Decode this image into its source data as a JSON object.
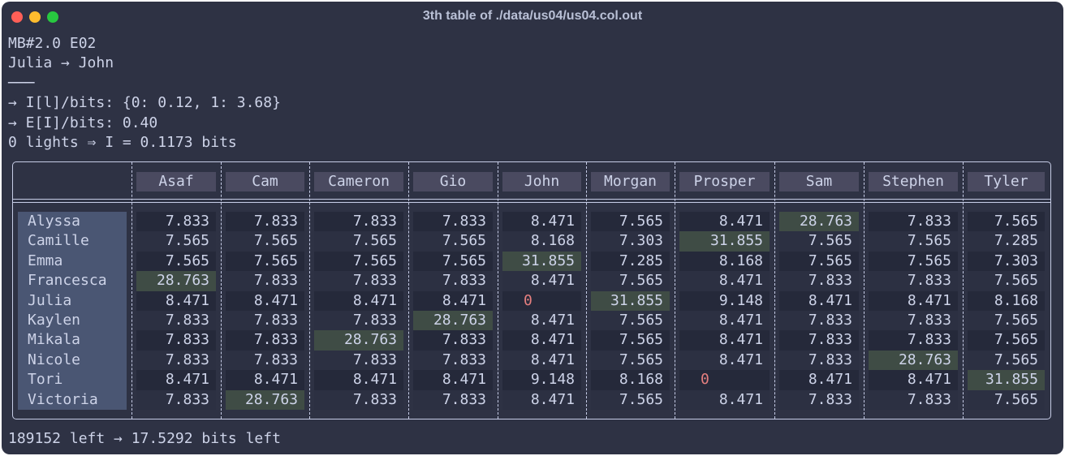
{
  "window": {
    "title": "3th table of ./data/us04/us04.col.out"
  },
  "header_lines": [
    "MB#2.0 E02",
    "Julia → John",
    "───",
    "→ I[l]/bits: {0: 0.12, 1: 3.68}",
    "→ E[I]/bits: 0.40",
    "0 lights ⇒ I = 0.1173 bits"
  ],
  "table": {
    "columns": [
      "Asaf",
      "Cam",
      "Cameron",
      "Gio",
      "John",
      "Morgan",
      "Prosper",
      "Sam",
      "Stephen",
      "Tyler"
    ],
    "rows": [
      {
        "name": "Alyssa",
        "values": [
          "7.833",
          "7.833",
          "7.833",
          "7.833",
          "8.471",
          "7.565",
          "8.471",
          "28.763",
          "7.833",
          "7.565"
        ]
      },
      {
        "name": "Camille",
        "values": [
          "7.565",
          "7.565",
          "7.565",
          "7.565",
          "8.168",
          "7.303",
          "31.855",
          "7.565",
          "7.565",
          "7.285"
        ]
      },
      {
        "name": "Emma",
        "values": [
          "7.565",
          "7.565",
          "7.565",
          "7.565",
          "31.855",
          "7.285",
          "8.168",
          "7.565",
          "7.565",
          "7.303"
        ]
      },
      {
        "name": "Francesca",
        "values": [
          "28.763",
          "7.833",
          "7.833",
          "7.833",
          "8.471",
          "7.565",
          "8.471",
          "7.833",
          "7.833",
          "7.565"
        ]
      },
      {
        "name": "Julia",
        "values": [
          "8.471",
          "8.471",
          "8.471",
          "8.471",
          "0",
          "31.855",
          "9.148",
          "8.471",
          "8.471",
          "8.168"
        ]
      },
      {
        "name": "Kaylen",
        "values": [
          "7.833",
          "7.833",
          "7.833",
          "28.763",
          "8.471",
          "7.565",
          "8.471",
          "7.833",
          "7.833",
          "7.565"
        ]
      },
      {
        "name": "Mikala",
        "values": [
          "7.833",
          "7.833",
          "28.763",
          "7.833",
          "8.471",
          "7.565",
          "8.471",
          "7.833",
          "7.833",
          "7.565"
        ]
      },
      {
        "name": "Nicole",
        "values": [
          "7.833",
          "7.833",
          "7.833",
          "7.833",
          "8.471",
          "7.565",
          "8.471",
          "7.833",
          "28.763",
          "7.565"
        ]
      },
      {
        "name": "Tori",
        "values": [
          "8.471",
          "8.471",
          "8.471",
          "8.471",
          "9.148",
          "8.168",
          "0",
          "8.471",
          "8.471",
          "31.855"
        ]
      },
      {
        "name": "Victoria",
        "values": [
          "7.833",
          "28.763",
          "7.833",
          "7.833",
          "8.471",
          "7.565",
          "8.471",
          "7.833",
          "7.833",
          "7.565"
        ]
      }
    ]
  },
  "footer": "189152 left → 17.5292 bits left"
}
